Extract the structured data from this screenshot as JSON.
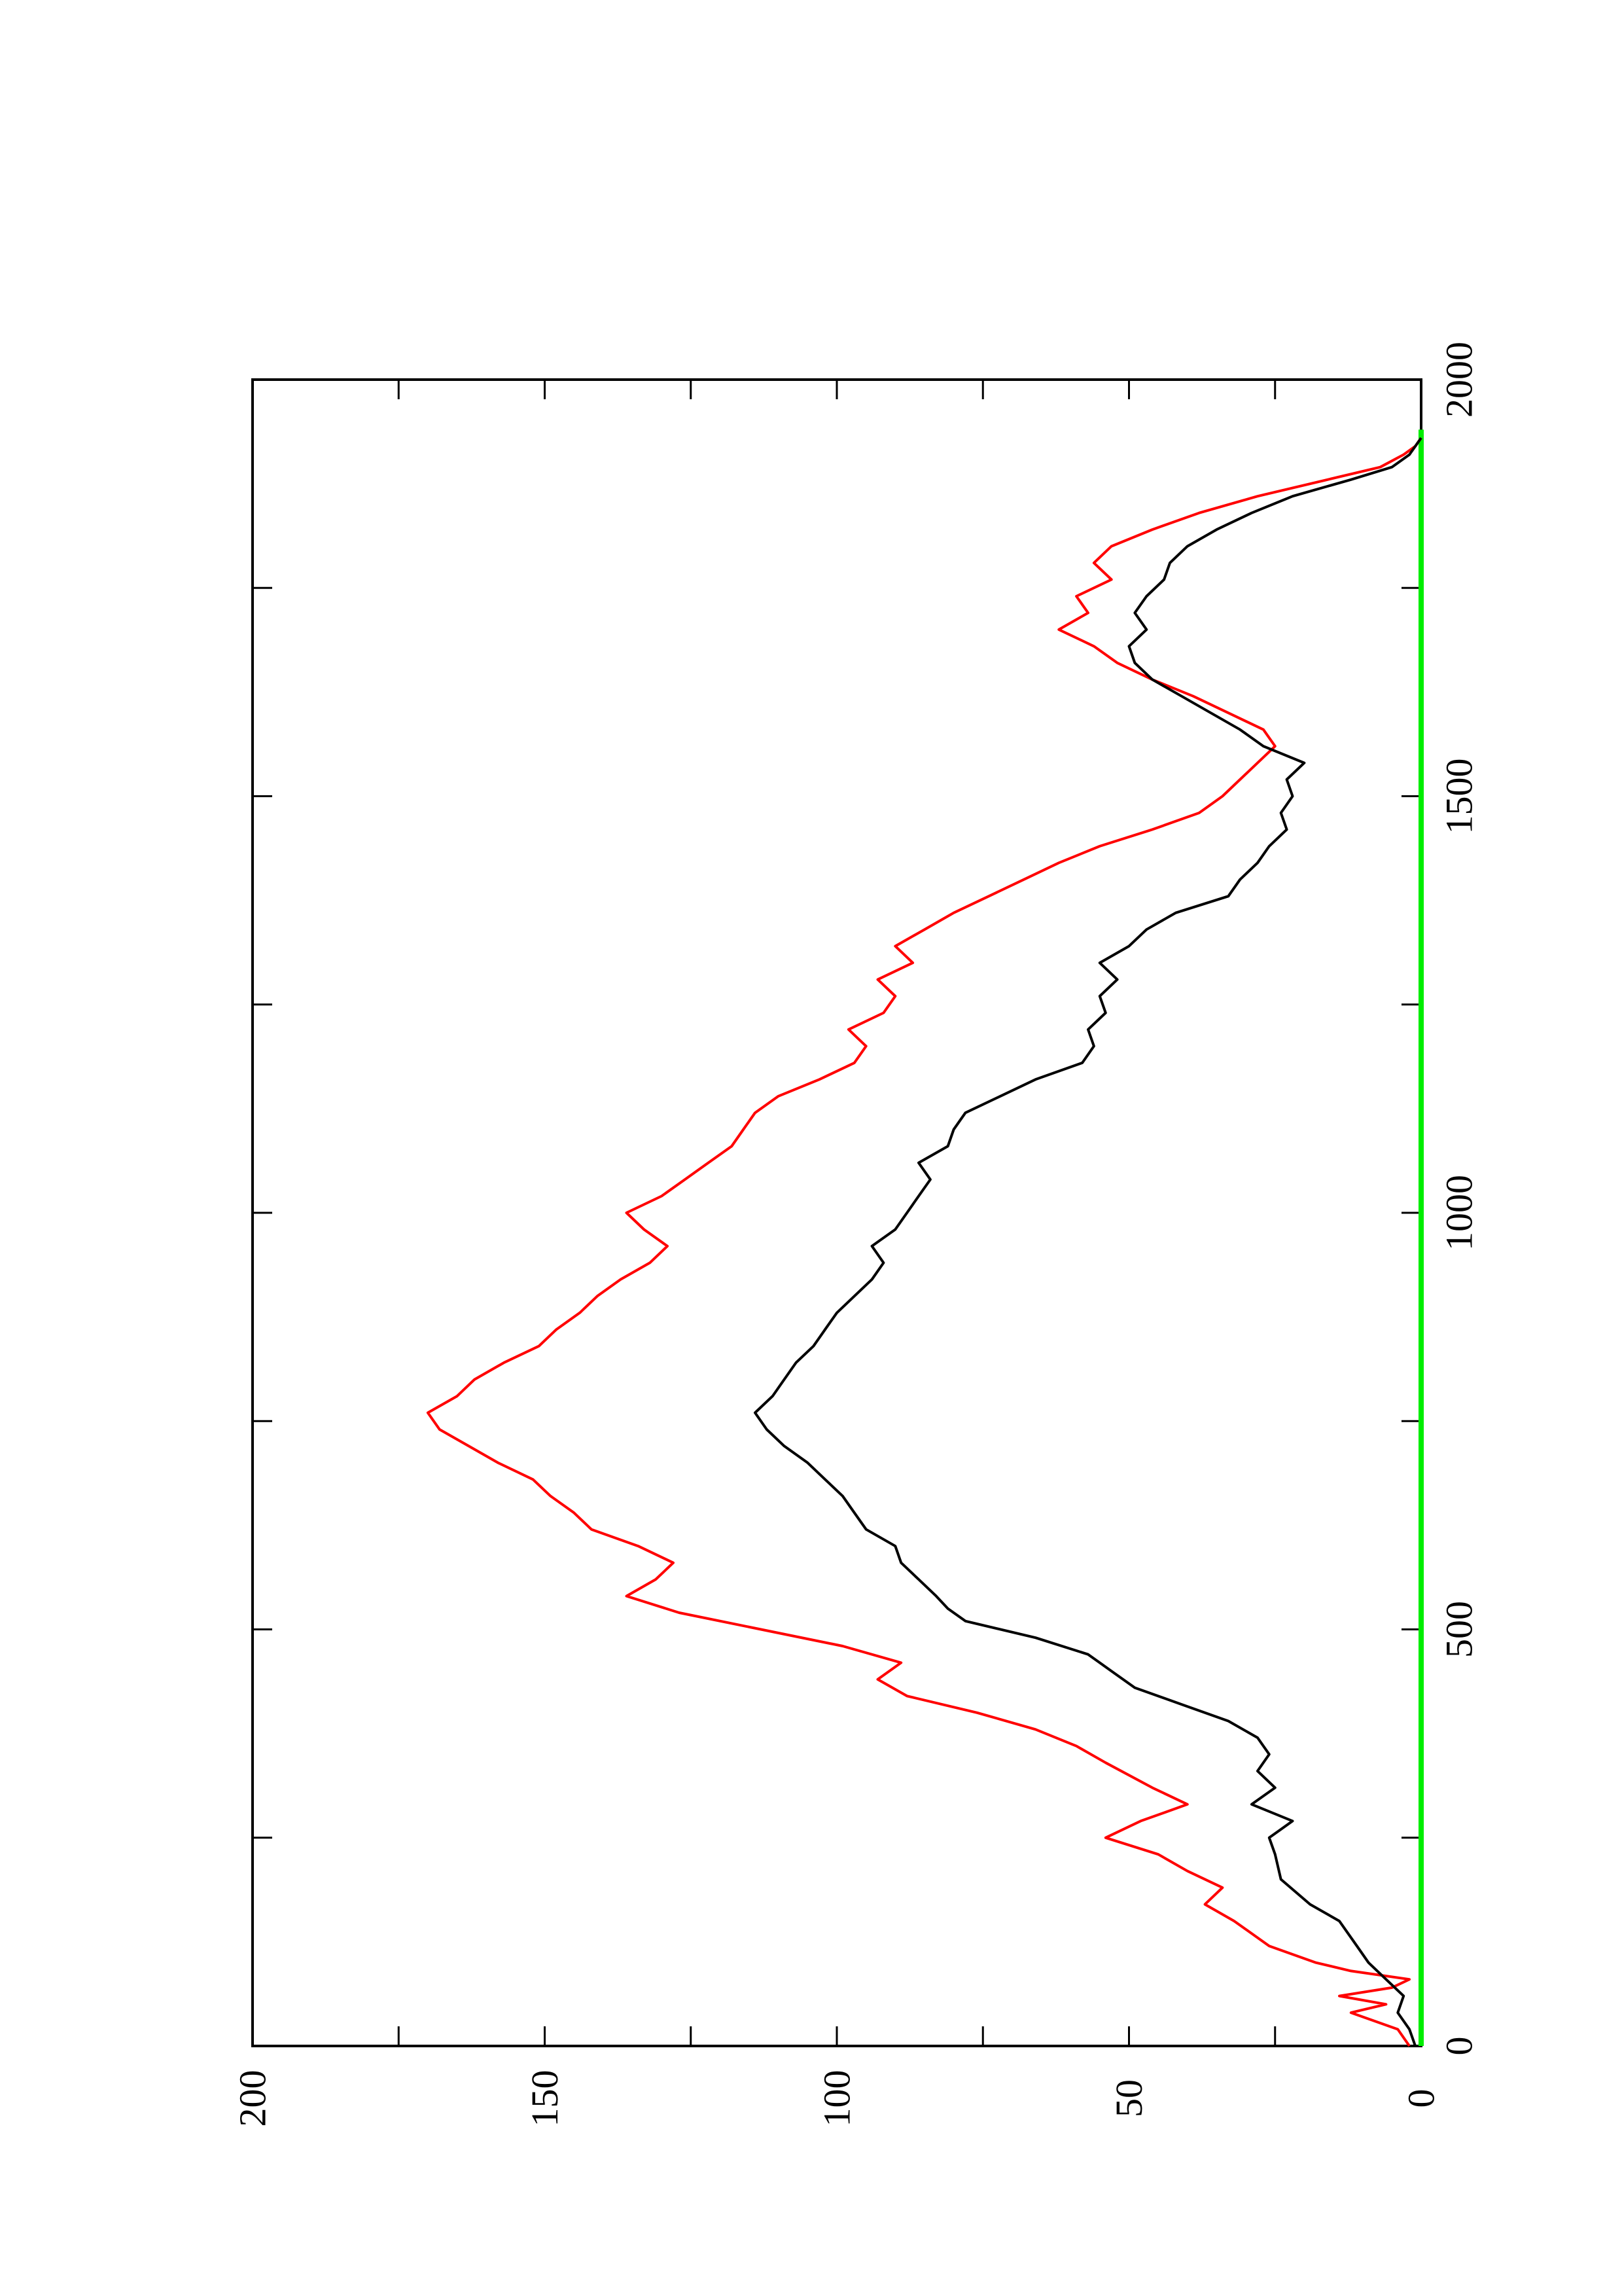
{
  "chart_data": {
    "type": "line",
    "orientation": "rotated 90° counter-clockwise (page in landscape layout)",
    "title": "",
    "xlabel": "",
    "ylabel": "",
    "xlim": [
      0,
      2000
    ],
    "ylim": [
      0,
      200
    ],
    "x_ticks": [
      0,
      500,
      1000,
      1500,
      2000
    ],
    "y_ticks": [
      0,
      50,
      100,
      150,
      200
    ],
    "x_tick_labels": [
      "0",
      "500",
      "1000",
      "1500",
      "2000"
    ],
    "y_tick_labels": [
      "0",
      "50",
      "100",
      "150",
      "200"
    ],
    "grid": false,
    "legend": "none",
    "series": [
      {
        "color": "#ff0000",
        "points": [
          [
            0,
            2
          ],
          [
            20,
            4
          ],
          [
            40,
            12
          ],
          [
            50,
            6
          ],
          [
            60,
            14
          ],
          [
            70,
            5
          ],
          [
            80,
            2
          ],
          [
            90,
            12
          ],
          [
            100,
            18
          ],
          [
            120,
            26
          ],
          [
            150,
            32
          ],
          [
            170,
            37
          ],
          [
            190,
            34
          ],
          [
            210,
            40
          ],
          [
            230,
            45
          ],
          [
            250,
            54
          ],
          [
            270,
            48
          ],
          [
            290,
            40
          ],
          [
            310,
            46
          ],
          [
            340,
            54
          ],
          [
            360,
            59
          ],
          [
            380,
            66
          ],
          [
            400,
            76
          ],
          [
            420,
            88
          ],
          [
            440,
            93
          ],
          [
            460,
            89
          ],
          [
            480,
            99
          ],
          [
            500,
            113
          ],
          [
            520,
            127
          ],
          [
            540,
            136
          ],
          [
            560,
            131
          ],
          [
            580,
            128
          ],
          [
            600,
            134
          ],
          [
            620,
            142
          ],
          [
            640,
            145
          ],
          [
            660,
            149
          ],
          [
            680,
            152
          ],
          [
            700,
            158
          ],
          [
            720,
            163
          ],
          [
            740,
            168
          ],
          [
            760,
            170
          ],
          [
            780,
            165
          ],
          [
            800,
            162
          ],
          [
            820,
            157
          ],
          [
            840,
            151
          ],
          [
            860,
            148
          ],
          [
            880,
            144
          ],
          [
            900,
            141
          ],
          [
            920,
            137
          ],
          [
            940,
            132
          ],
          [
            960,
            129
          ],
          [
            980,
            133
          ],
          [
            1000,
            136
          ],
          [
            1020,
            130
          ],
          [
            1040,
            126
          ],
          [
            1060,
            122
          ],
          [
            1080,
            118
          ],
          [
            1100,
            116
          ],
          [
            1120,
            114
          ],
          [
            1140,
            110
          ],
          [
            1160,
            103
          ],
          [
            1180,
            97
          ],
          [
            1200,
            95
          ],
          [
            1220,
            98
          ],
          [
            1240,
            92
          ],
          [
            1260,
            90
          ],
          [
            1280,
            93
          ],
          [
            1300,
            87
          ],
          [
            1320,
            90
          ],
          [
            1340,
            85
          ],
          [
            1360,
            80
          ],
          [
            1380,
            74
          ],
          [
            1400,
            68
          ],
          [
            1420,
            62
          ],
          [
            1440,
            55
          ],
          [
            1460,
            46
          ],
          [
            1480,
            38
          ],
          [
            1500,
            34
          ],
          [
            1520,
            31
          ],
          [
            1540,
            28
          ],
          [
            1560,
            25
          ],
          [
            1580,
            27
          ],
          [
            1600,
            33
          ],
          [
            1620,
            39
          ],
          [
            1640,
            46
          ],
          [
            1660,
            52
          ],
          [
            1680,
            56
          ],
          [
            1700,
            62
          ],
          [
            1720,
            57
          ],
          [
            1740,
            59
          ],
          [
            1760,
            53
          ],
          [
            1780,
            56
          ],
          [
            1800,
            53
          ],
          [
            1820,
            46
          ],
          [
            1840,
            38
          ],
          [
            1860,
            28
          ],
          [
            1880,
            16
          ],
          [
            1895,
            7
          ],
          [
            1910,
            3
          ],
          [
            1920,
            1
          ],
          [
            1930,
            0
          ]
        ]
      },
      {
        "color": "#000000",
        "points": [
          [
            0,
            1
          ],
          [
            20,
            2
          ],
          [
            40,
            4
          ],
          [
            60,
            3
          ],
          [
            80,
            6
          ],
          [
            100,
            9
          ],
          [
            120,
            11
          ],
          [
            150,
            14
          ],
          [
            170,
            19
          ],
          [
            200,
            24
          ],
          [
            230,
            25
          ],
          [
            250,
            26
          ],
          [
            270,
            22
          ],
          [
            290,
            29
          ],
          [
            310,
            25
          ],
          [
            330,
            28
          ],
          [
            350,
            26
          ],
          [
            370,
            28
          ],
          [
            390,
            33
          ],
          [
            410,
            41
          ],
          [
            430,
            49
          ],
          [
            450,
            53
          ],
          [
            470,
            57
          ],
          [
            490,
            66
          ],
          [
            510,
            78
          ],
          [
            525,
            81
          ],
          [
            540,
            83
          ],
          [
            560,
            86
          ],
          [
            580,
            89
          ],
          [
            600,
            90
          ],
          [
            620,
            95
          ],
          [
            640,
            97
          ],
          [
            660,
            99
          ],
          [
            680,
            102
          ],
          [
            700,
            105
          ],
          [
            720,
            109
          ],
          [
            740,
            112
          ],
          [
            760,
            114
          ],
          [
            780,
            111
          ],
          [
            800,
            109
          ],
          [
            820,
            107
          ],
          [
            840,
            104
          ],
          [
            860,
            102
          ],
          [
            880,
            100
          ],
          [
            900,
            97
          ],
          [
            920,
            94
          ],
          [
            940,
            92
          ],
          [
            960,
            94
          ],
          [
            980,
            90
          ],
          [
            1000,
            88
          ],
          [
            1020,
            86
          ],
          [
            1040,
            84
          ],
          [
            1060,
            86
          ],
          [
            1080,
            81
          ],
          [
            1100,
            80
          ],
          [
            1120,
            78
          ],
          [
            1140,
            72
          ],
          [
            1160,
            66
          ],
          [
            1180,
            58
          ],
          [
            1200,
            56
          ],
          [
            1220,
            57
          ],
          [
            1240,
            54
          ],
          [
            1260,
            55
          ],
          [
            1280,
            52
          ],
          [
            1300,
            55
          ],
          [
            1320,
            50
          ],
          [
            1340,
            47
          ],
          [
            1360,
            42
          ],
          [
            1380,
            33
          ],
          [
            1400,
            31
          ],
          [
            1420,
            28
          ],
          [
            1440,
            26
          ],
          [
            1460,
            23
          ],
          [
            1480,
            24
          ],
          [
            1500,
            22
          ],
          [
            1520,
            23
          ],
          [
            1540,
            20
          ],
          [
            1560,
            27
          ],
          [
            1580,
            31
          ],
          [
            1600,
            36
          ],
          [
            1620,
            41
          ],
          [
            1640,
            46
          ],
          [
            1660,
            49
          ],
          [
            1680,
            50
          ],
          [
            1700,
            47
          ],
          [
            1720,
            49
          ],
          [
            1740,
            47
          ],
          [
            1760,
            44
          ],
          [
            1780,
            43
          ],
          [
            1800,
            40
          ],
          [
            1820,
            35
          ],
          [
            1840,
            29
          ],
          [
            1860,
            22
          ],
          [
            1880,
            12
          ],
          [
            1895,
            5
          ],
          [
            1910,
            2
          ],
          [
            1930,
            0
          ]
        ]
      },
      {
        "color": "#00ee00",
        "points": [
          [
            0,
            0
          ],
          [
            1940,
            0
          ]
        ]
      }
    ]
  }
}
